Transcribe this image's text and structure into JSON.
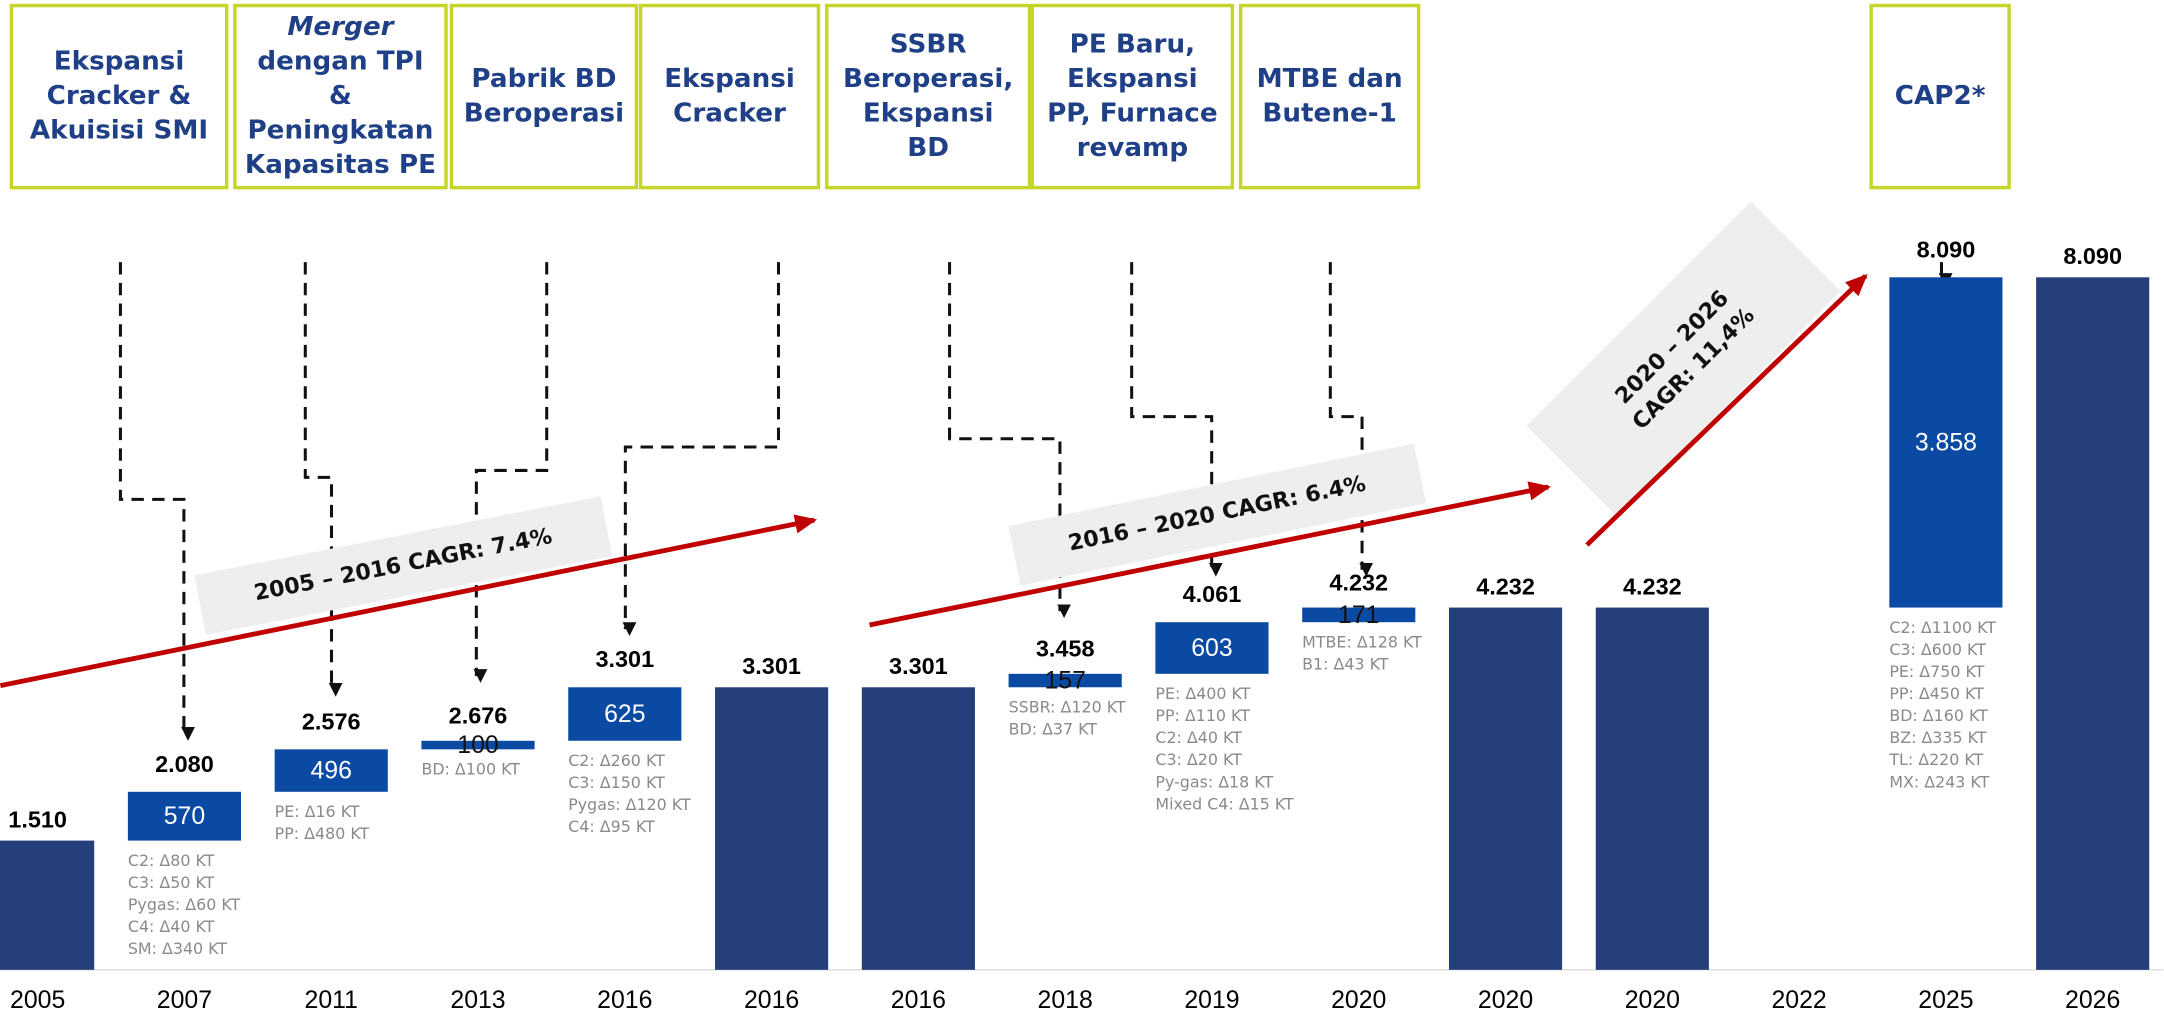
{
  "chart_data": {
    "type": "waterfall",
    "categories": [
      "2005",
      "2007",
      "2011",
      "2013",
      "2016",
      "2016",
      "2016",
      "2018",
      "2019",
      "2020",
      "2020",
      "2020",
      "2022",
      "2025",
      "2026"
    ],
    "kinds": [
      "total",
      "increase",
      "increase",
      "increase",
      "increase",
      "total",
      "total",
      "increase",
      "increase",
      "increase",
      "total",
      "total",
      null,
      "increase",
      "total"
    ],
    "values": [
      1510,
      570,
      496,
      100,
      625,
      3301,
      3301,
      157,
      603,
      171,
      4232,
      4232,
      null,
      3858,
      8090
    ],
    "value_labels": [
      "1.510",
      "570",
      "496",
      "100",
      "625",
      "3.301",
      "3.301",
      "157",
      "603",
      "171",
      "4.232",
      "4.232",
      null,
      "3.858",
      "8.090"
    ],
    "running_total_labels": [
      null,
      "2.080",
      "2.576",
      "2.676",
      "3.301",
      null,
      null,
      "3.458",
      "4.061",
      "4.232",
      null,
      null,
      null,
      "8.090",
      null
    ],
    "total_color": "#253f7a",
    "increase_color": "#0b4aa2",
    "ylim": [
      0,
      8090
    ],
    "notes": [
      null,
      [
        "C2: Δ80 KT",
        "C3: Δ50 KT",
        "Pygas: Δ60 KT",
        "C4: Δ40 KT",
        "SM: Δ340 KT"
      ],
      [
        "PE: Δ16 KT",
        "PP: Δ480 KT"
      ],
      [
        "BD: Δ100 KT"
      ],
      [
        "C2: Δ260 KT",
        "C3: Δ150 KT",
        "Pygas: Δ120 KT",
        "C4: Δ95 KT"
      ],
      null,
      null,
      [
        "SSBR: Δ120 KT",
        "BD: Δ37 KT"
      ],
      [
        "PE: Δ400 KT",
        "PP: Δ110 KT",
        "C2: Δ40 KT",
        "C3: Δ20 KT",
        "Py-gas: Δ18 KT",
        "Mixed C4: Δ15 KT"
      ],
      [
        "MTBE: Δ128 KT",
        "B1: Δ43 KT"
      ],
      null,
      null,
      null,
      [
        "C2: Δ1100 KT",
        "C3: Δ600 KT",
        "PE: Δ750 KT",
        "PP: Δ450 KT",
        "BD: Δ160 KT",
        "BZ: Δ335 KT",
        "TL: Δ220 KT",
        "MX: Δ243 KT"
      ],
      null
    ],
    "milestones": [
      [
        "Ekspansi",
        "Cracker &",
        "Akuisisi SMI"
      ],
      [
        "Merger",
        "dengan TPI",
        "&",
        "Peningkatan",
        "Kapasitas PE"
      ],
      [
        "Pabrik BD",
        "Beroperasi"
      ],
      [
        "Ekspansi",
        "Cracker"
      ],
      [
        "SSBR",
        "Beroperasi,",
        "Ekspansi",
        "BD"
      ],
      [
        "PE Baru,",
        "Ekspansi",
        "PP, Furnace",
        "revamp"
      ],
      [
        "MTBE dan",
        "Butene-1"
      ],
      [
        "CAP2*"
      ]
    ],
    "cagr_annotations": [
      [
        "2005 – 2016 CAGR: 7.4%"
      ],
      [
        "2016 – 2020 CAGR: 6.4%"
      ],
      [
        "2020 – 2026",
        "CAGR: 11,4%"
      ]
    ]
  }
}
